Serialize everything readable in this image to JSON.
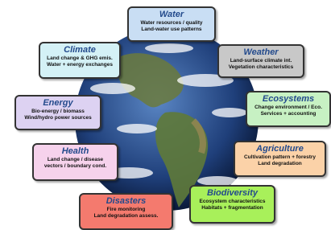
{
  "nodes": [
    {
      "title": "Water",
      "lines": [
        "Water resources / quality",
        "Land-water use patterns"
      ]
    },
    {
      "title": "Climate",
      "lines": [
        "Land change & GHG emis.",
        "Water + energy exchanges"
      ]
    },
    {
      "title": "Weather",
      "lines": [
        "Land-surface climate int.",
        "Vegetation characteristics"
      ]
    },
    {
      "title": "Energy",
      "lines": [
        "Bio-energy / biomass",
        "Wind/hydro power sources"
      ]
    },
    {
      "title": "Ecosystems",
      "lines": [
        "Change environment / Eco.",
        "Services + accounting"
      ]
    },
    {
      "title": "Health",
      "lines": [
        "Land change / disease",
        "vectors / boundary cond."
      ]
    },
    {
      "title": "Agriculture",
      "lines": [
        "Cultivation pattern + forestry",
        "Land degradation"
      ]
    },
    {
      "title": "Disasters",
      "lines": [
        "Fire monitoring",
        "Land degradation assess."
      ]
    },
    {
      "title": "Biodiversity",
      "lines": [
        "Ecosystem characteristics",
        "Habitats + fragmentation"
      ]
    }
  ]
}
